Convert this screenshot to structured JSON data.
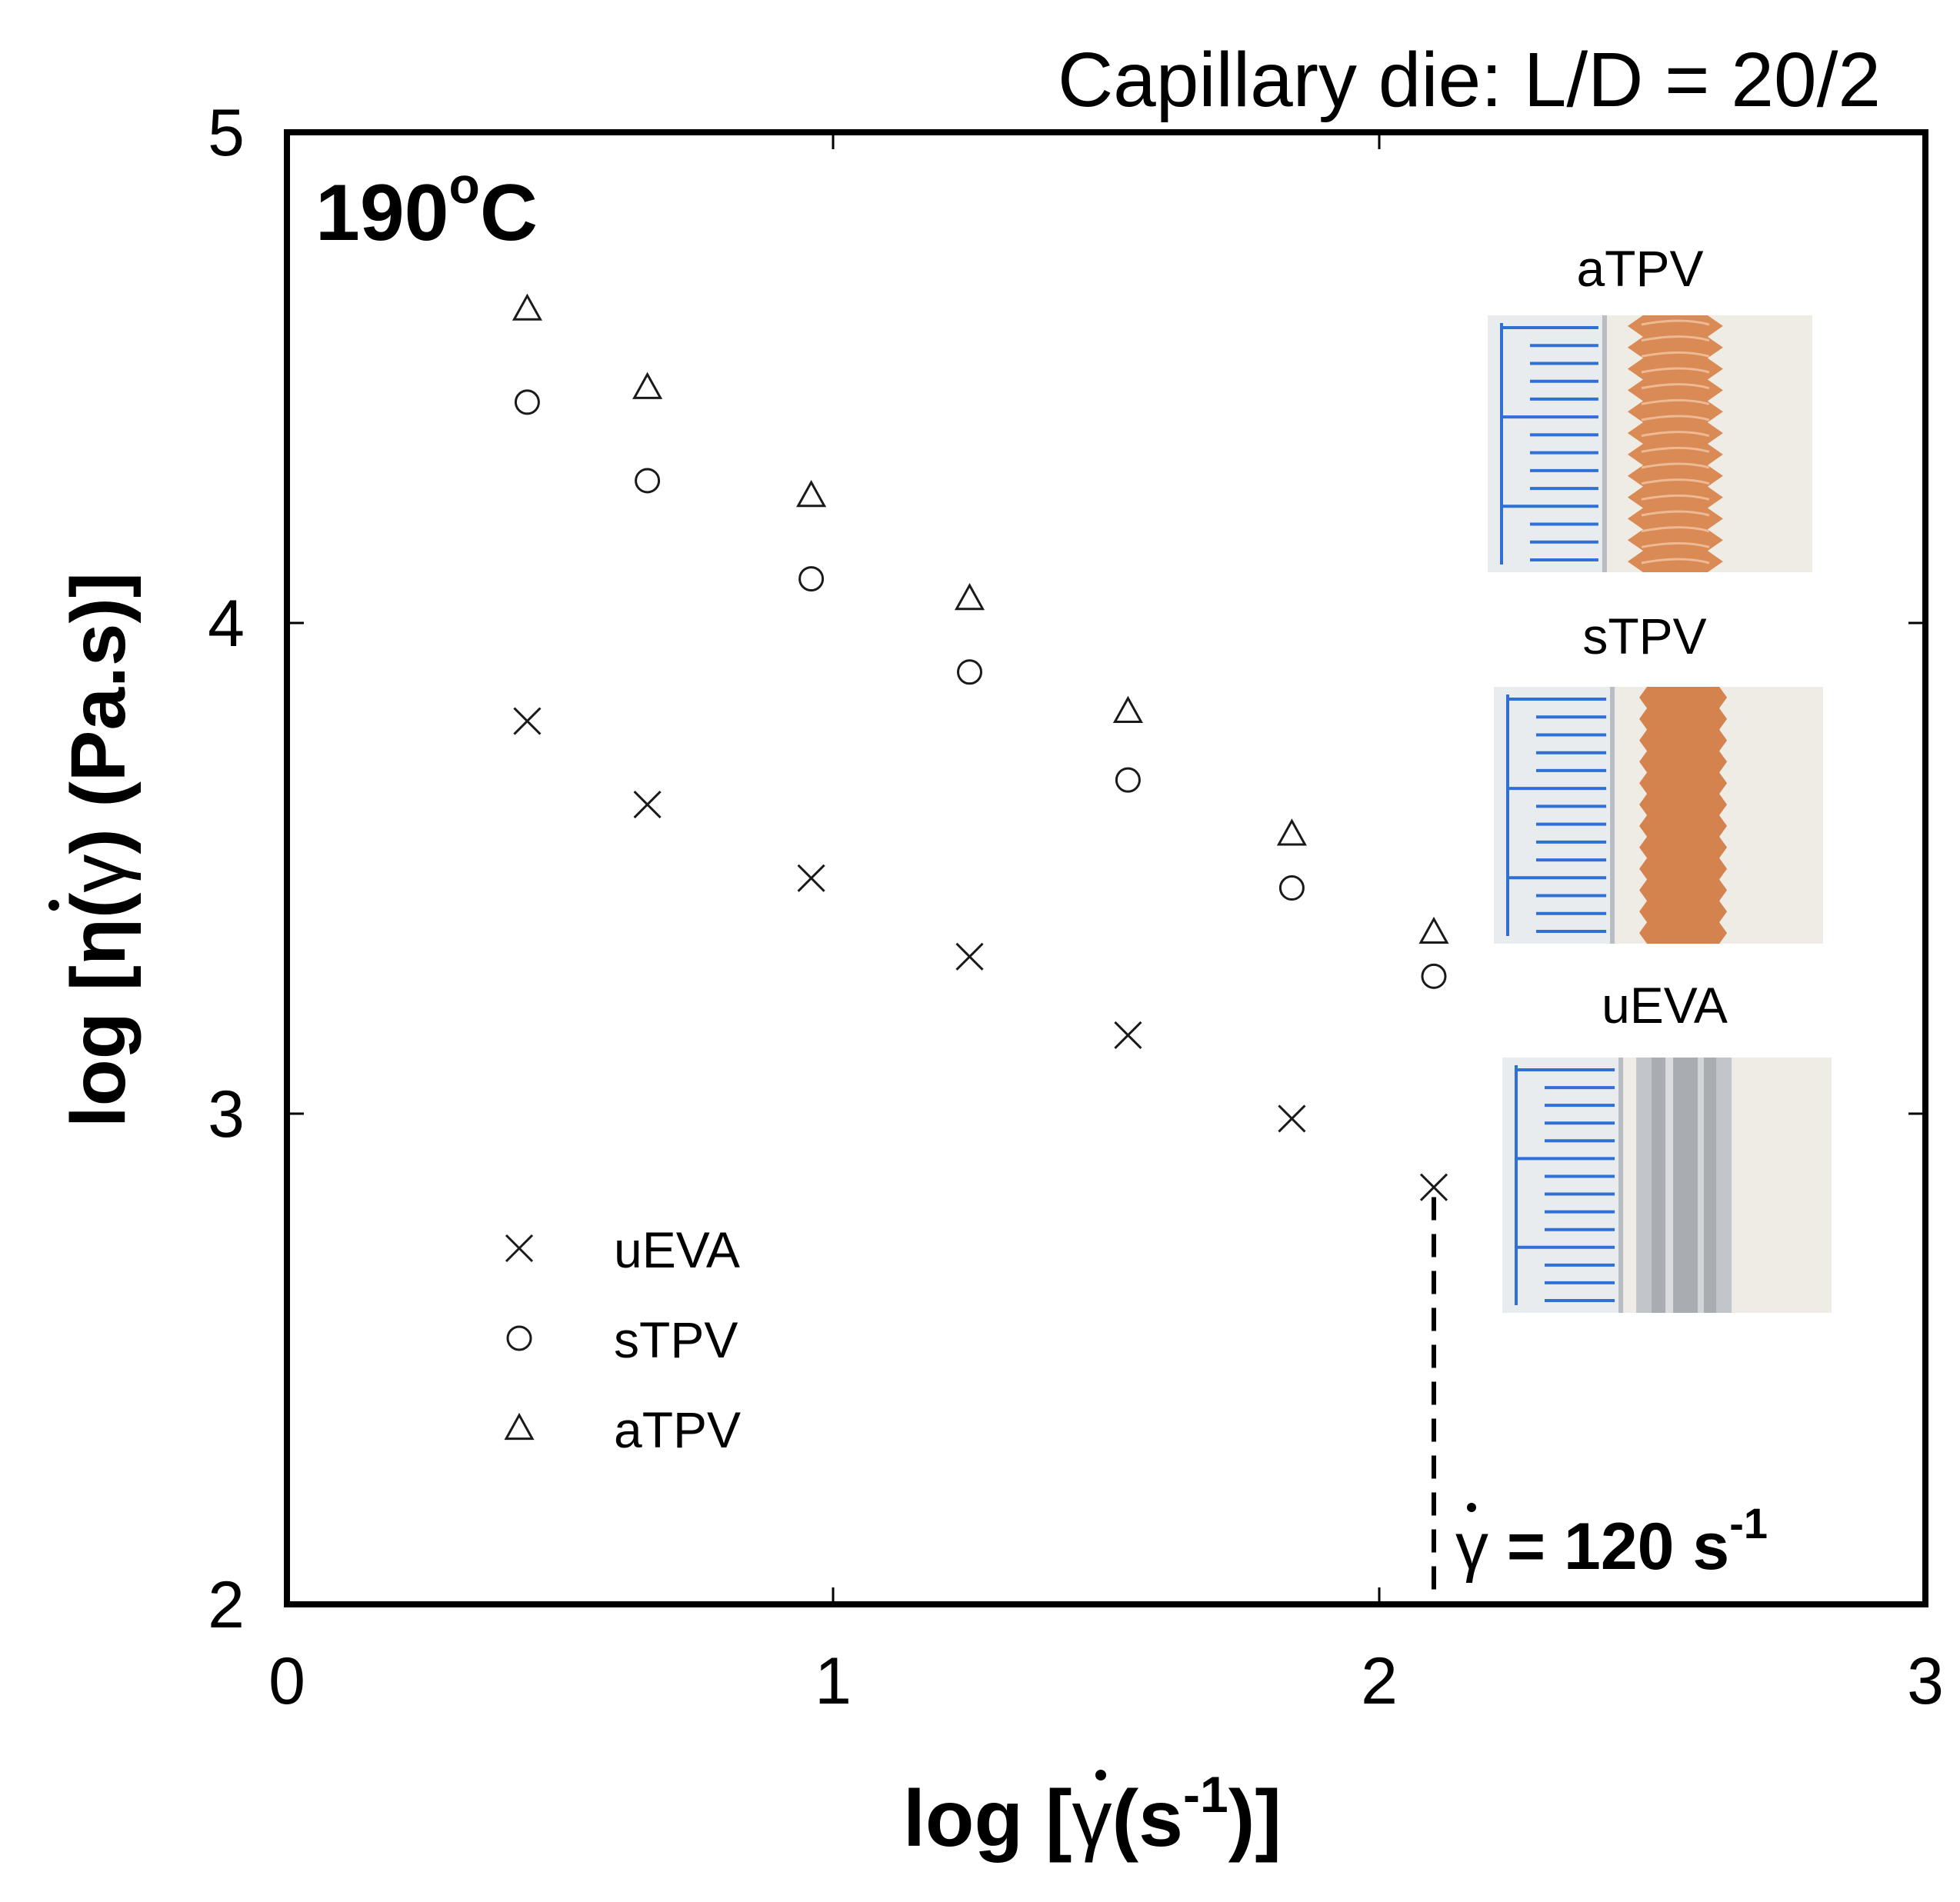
{
  "header_note": "Capillary die: L/D = 20/2",
  "temperature_label": {
    "value": "190",
    "degree": "o",
    "unit": "C"
  },
  "chart_data": {
    "type": "scatter",
    "title": "",
    "xlabel": "log [γ̇(s-1)]",
    "ylabel": "log [η(γ̇) (Pa.s)]",
    "xlabel_parts": {
      "prefix": "log [",
      "symbol": "γ",
      "paren_open": "(s",
      "exponent": "-1",
      "suffix": ")]"
    },
    "ylabel_parts": {
      "prefix": "log [η(",
      "symbol": "γ",
      "suffix": ") (Pa.s)]"
    },
    "xlim": [
      0,
      3
    ],
    "ylim": [
      2,
      5
    ],
    "xticks": [
      0,
      1,
      2,
      3
    ],
    "yticks": [
      2,
      3,
      4,
      5
    ],
    "xtick_labels": [
      "0",
      "1",
      "2",
      "3"
    ],
    "ytick_labels": [
      "2",
      "3",
      "4",
      "5"
    ],
    "grid": false,
    "legend_position": "lower-left",
    "series": [
      {
        "name": "uEVA",
        "marker": "x",
        "x": [
          0.44,
          0.66,
          0.96,
          1.25,
          1.54,
          1.84,
          2.1
        ],
        "y": [
          3.8,
          3.63,
          3.48,
          3.32,
          3.16,
          2.99,
          2.85
        ]
      },
      {
        "name": "sTPV",
        "marker": "circle",
        "x": [
          0.44,
          0.66,
          0.96,
          1.25,
          1.54,
          1.84,
          2.1
        ],
        "y": [
          4.45,
          4.29,
          4.09,
          3.9,
          3.68,
          3.46,
          3.28
        ]
      },
      {
        "name": "aTPV",
        "marker": "triangle",
        "x": [
          0.44,
          0.66,
          0.96,
          1.25,
          1.54,
          1.84,
          2.1
        ],
        "y": [
          4.64,
          4.48,
          4.26,
          4.05,
          3.82,
          3.57,
          3.37
        ]
      }
    ],
    "annotation": {
      "x": 2.1,
      "y_from": 2.0,
      "y_to": 2.83,
      "style": "dashed",
      "label_symbol": "γ",
      "label_text": " = 120 s",
      "label_exponent": "-1"
    },
    "insets": [
      {
        "label": "aTPV",
        "extrudate_color": "#d98a55",
        "surface": "rough"
      },
      {
        "label": "sTPV",
        "extrudate_color": "#d4834f",
        "surface": "slightly-rough"
      },
      {
        "label": "uEVA",
        "extrudate_color": "#a9acb0",
        "surface": "smooth"
      }
    ]
  },
  "colors": {
    "axis": "#000000",
    "marker": "#1a1a1a",
    "ruler_ink": "#2f6fd6",
    "ruler_paper": "#e9ecef",
    "background_photo": "#efece6"
  }
}
